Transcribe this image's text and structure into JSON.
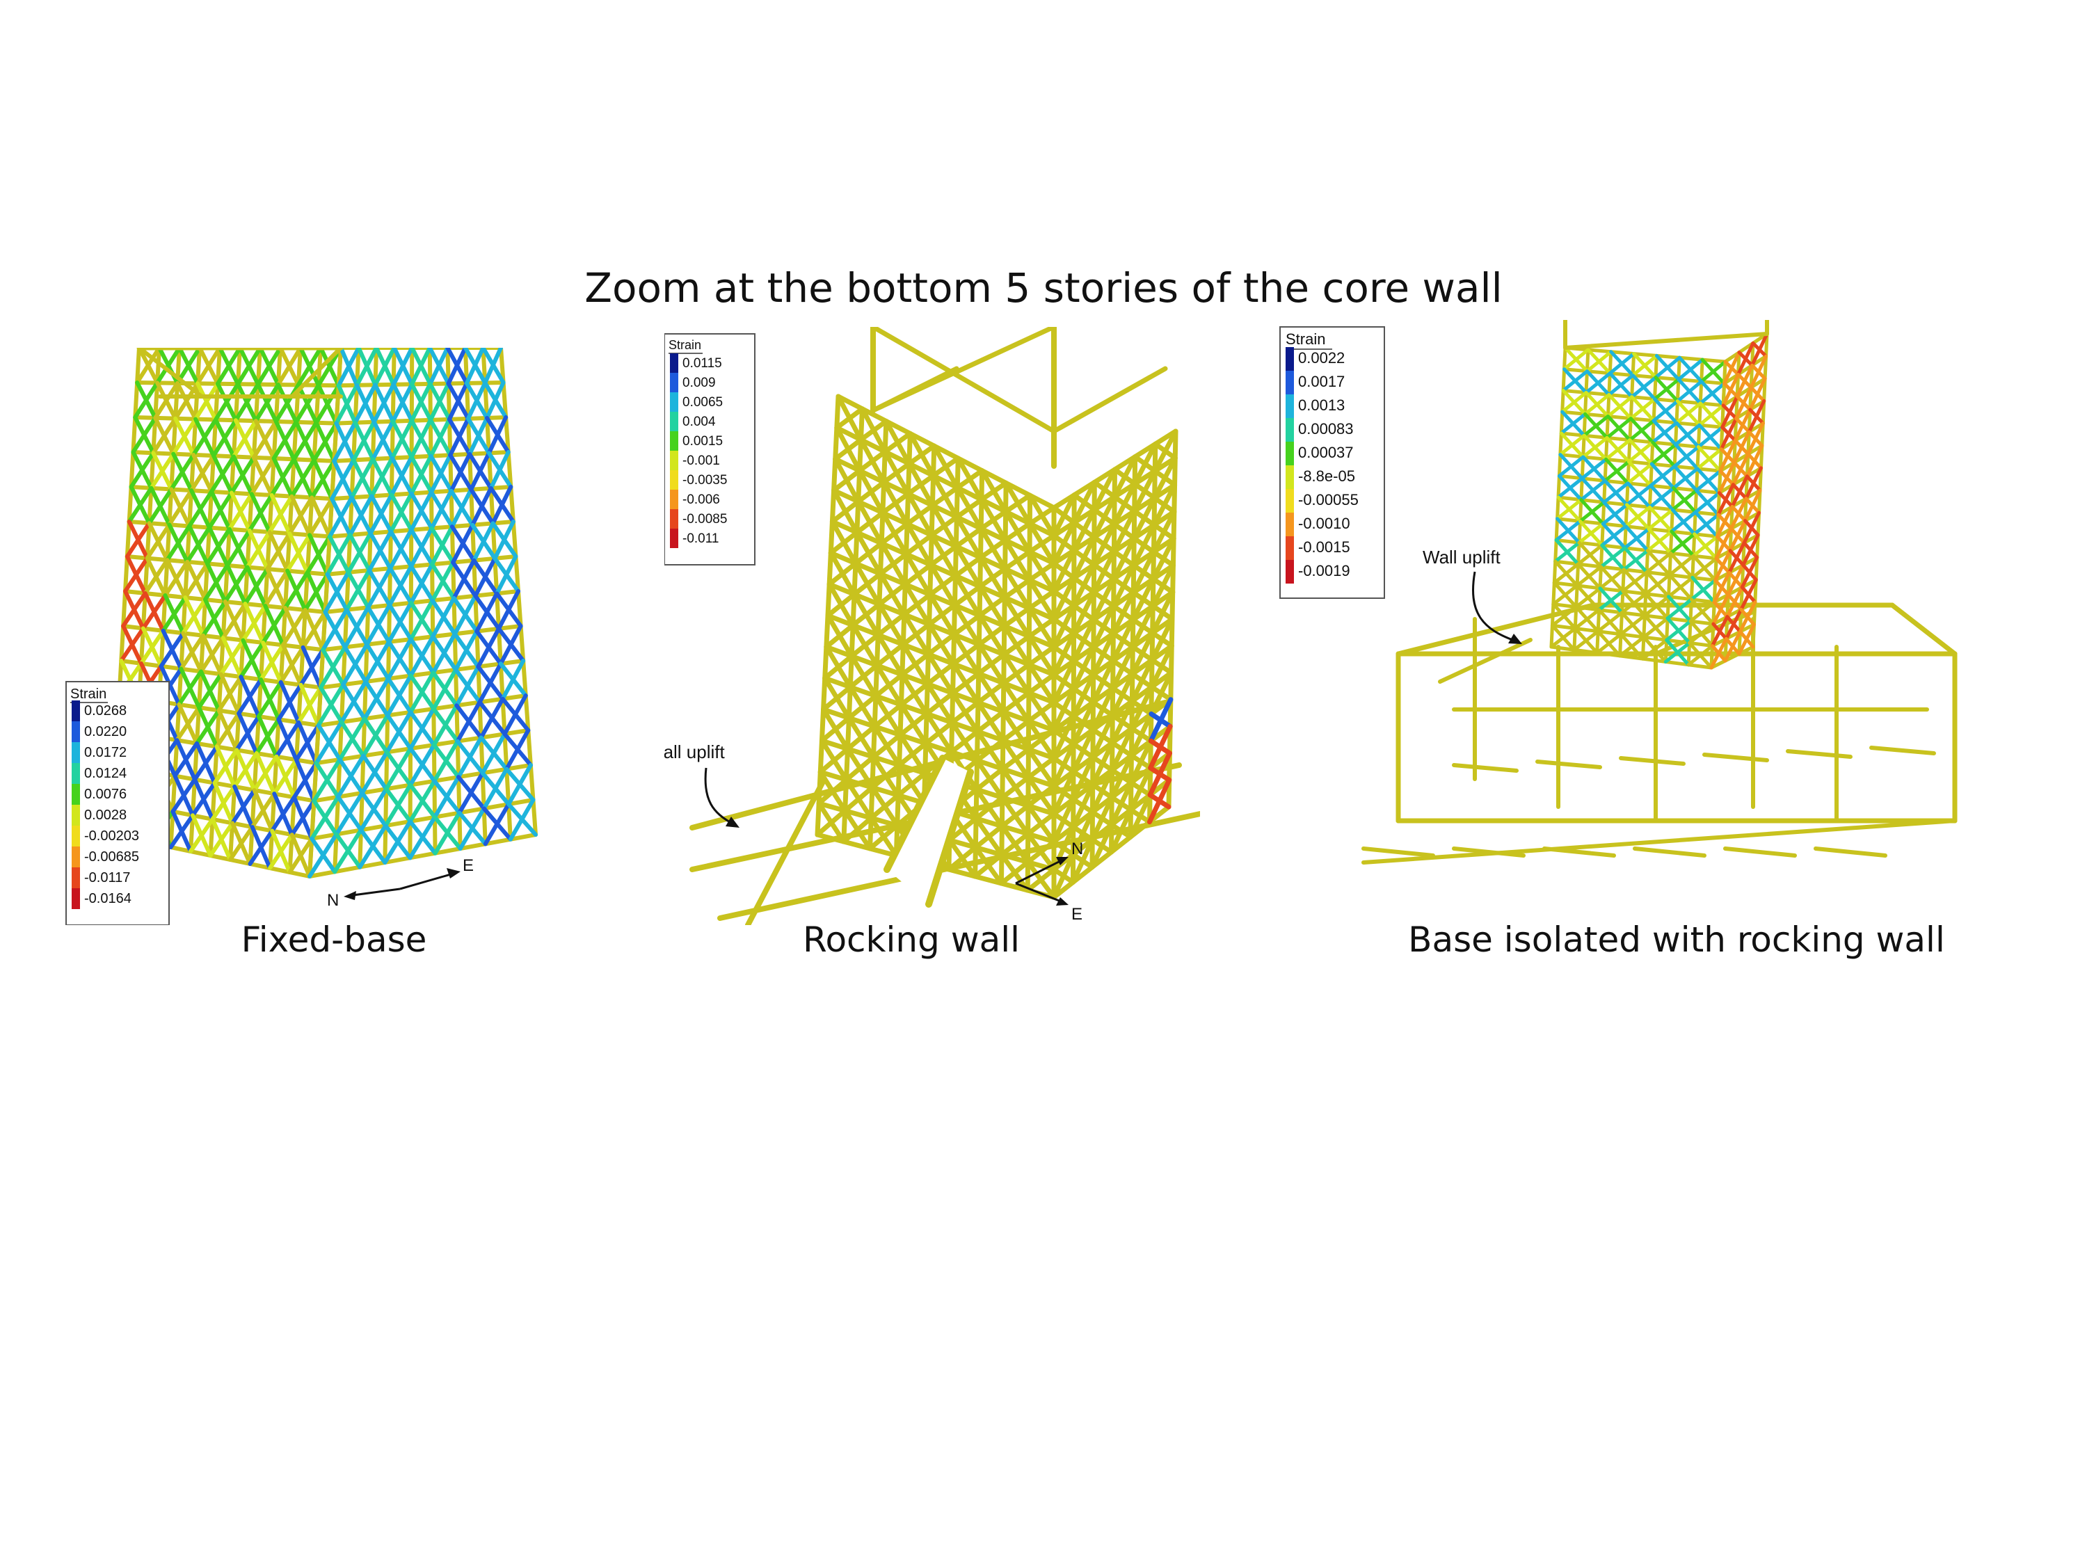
{
  "title": "Zoom at the bottom 5 stories of the core wall",
  "panels": [
    {
      "caption": "Fixed-base",
      "colorbar": {
        "title": "Strain",
        "ticks": [
          "0.0268",
          "0.0220",
          "0.0172",
          "0.0124",
          "0.0076",
          "0.0028",
          "-0.00203",
          "-0.00685",
          "-0.0117",
          "-0.0164"
        ]
      },
      "compass": {
        "n": "N",
        "e": "E"
      }
    },
    {
      "caption": "Rocking wall",
      "colorbar": {
        "title": "Strain",
        "ticks": [
          "0.0115",
          "0.009",
          "0.0065",
          "0.004",
          "0.0015",
          "-0.001",
          "-0.0035",
          "-0.006",
          "-0.0085",
          "-0.011"
        ]
      },
      "annotation": "Wall uplift",
      "compass": {
        "n": "N",
        "e": "E"
      }
    },
    {
      "caption": "Base isolated with rocking wall",
      "colorbar": {
        "title": "Strain",
        "ticks": [
          "0.0022",
          "0.0017",
          "0.0013",
          "0.00083",
          "0.00037",
          "-8.8e-05",
          "-0.00055",
          "-0.0010",
          "-0.0015",
          "-0.0019"
        ]
      },
      "annotation": "Wall uplift"
    }
  ],
  "colors": {
    "strut": "#c8c21e",
    "scale": [
      "#0a1a8c",
      "#1e5adc",
      "#1eb4dc",
      "#23d2a0",
      "#46d21e",
      "#d2e61e",
      "#f0dc1e",
      "#f5961e",
      "#e6461e",
      "#c8141e"
    ]
  }
}
